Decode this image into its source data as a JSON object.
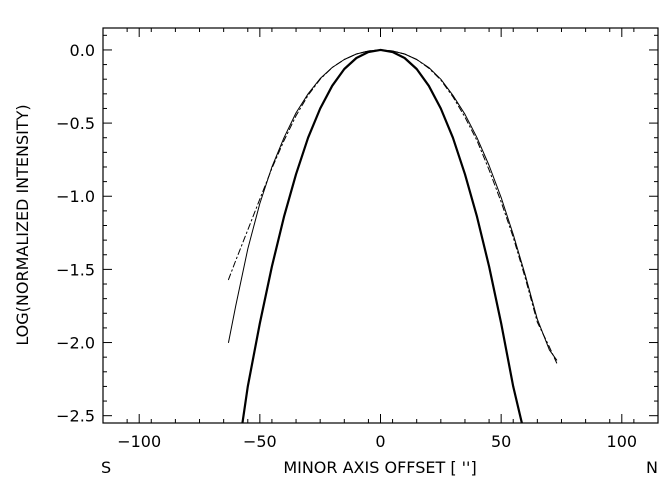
{
  "chart_data": {
    "type": "line",
    "title": "",
    "xlabel": "MINOR AXIS OFFSET [ '']",
    "ylabel": "LOG(NORMALIZED INTENSITY)",
    "xlim": [
      -115,
      115
    ],
    "ylim": [
      -2.55,
      0.15
    ],
    "x_ticks": [
      -100,
      -50,
      0,
      50,
      100
    ],
    "x_tick_labels": [
      "−100",
      "−50",
      "0",
      "50",
      "100"
    ],
    "y_ticks": [
      0.0,
      -0.5,
      -1.0,
      -1.5,
      -2.0,
      -2.5
    ],
    "y_tick_labels": [
      "0.0",
      "−0.5",
      "−1.0",
      "−1.5",
      "−2.0",
      "−2.5"
    ],
    "edge_labels": {
      "left": "S",
      "right": "N"
    },
    "grid": false,
    "series": [
      {
        "style": "thin-solid",
        "x": [
          -63,
          -60,
          -55,
          -50,
          -45,
          -40,
          -35,
          -30,
          -25,
          -20,
          -15,
          -10,
          -5,
          0,
          5,
          10,
          15,
          20,
          25,
          30,
          35,
          40,
          45,
          50,
          55,
          60,
          65,
          70,
          73
        ],
        "y": [
          -2.0,
          -1.75,
          -1.36,
          -1.05,
          -0.8,
          -0.6,
          -0.43,
          -0.3,
          -0.195,
          -0.12,
          -0.065,
          -0.028,
          -0.007,
          0.0,
          -0.007,
          -0.028,
          -0.065,
          -0.12,
          -0.2,
          -0.31,
          -0.44,
          -0.6,
          -0.79,
          -1.01,
          -1.26,
          -1.54,
          -1.84,
          -2.05,
          -2.12
        ]
      },
      {
        "style": "dash-dot",
        "x": [
          -63,
          -60,
          -55,
          -50,
          -45,
          -40,
          -35,
          -30,
          -25,
          -20,
          -15,
          -10,
          -5,
          0,
          5,
          10,
          15,
          20,
          25,
          30,
          35,
          40,
          45,
          50,
          55,
          60,
          65,
          70,
          73
        ],
        "y": [
          -1.57,
          -1.44,
          -1.23,
          -1.02,
          -0.81,
          -0.62,
          -0.45,
          -0.31,
          -0.2,
          -0.12,
          -0.065,
          -0.028,
          -0.007,
          0.0,
          -0.007,
          -0.028,
          -0.065,
          -0.125,
          -0.205,
          -0.32,
          -0.46,
          -0.62,
          -0.82,
          -1.04,
          -1.28,
          -1.56,
          -1.86,
          -2.03,
          -2.14
        ]
      },
      {
        "style": "thick-solid",
        "x": [
          -57.5,
          -55,
          -50,
          -45,
          -40,
          -35,
          -30,
          -25,
          -20,
          -15,
          -10,
          -5,
          0,
          5,
          10,
          15,
          20,
          25,
          30,
          35,
          40,
          45,
          50,
          55,
          59
        ],
        "y": [
          -2.58,
          -2.3,
          -1.87,
          -1.48,
          -1.14,
          -0.85,
          -0.6,
          -0.4,
          -0.245,
          -0.13,
          -0.055,
          -0.014,
          0.0,
          -0.014,
          -0.055,
          -0.13,
          -0.245,
          -0.4,
          -0.6,
          -0.85,
          -1.14,
          -1.48,
          -1.87,
          -2.3,
          -2.58
        ]
      }
    ]
  }
}
